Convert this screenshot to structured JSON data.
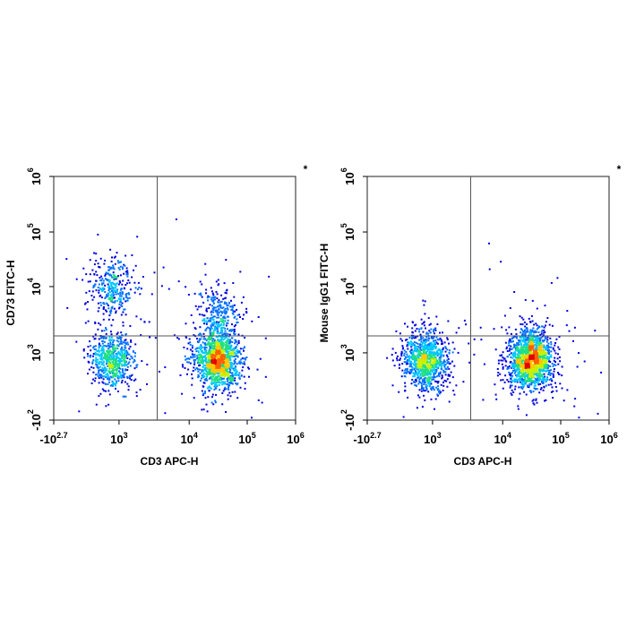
{
  "chart_data": [
    {
      "type": "scatter",
      "style": "density-colored dot plot",
      "xlabel": "CD3 APC-H",
      "ylabel": "CD73 FITC-H",
      "corner_marker": "*",
      "x_scale": "biexponential",
      "y_scale": "biexponential",
      "x_ticks": [
        {
          "value": -501,
          "base": "-10",
          "exp": "2.7"
        },
        {
          "value": 1000,
          "base": "10",
          "exp": "3"
        },
        {
          "value": 10000,
          "base": "10",
          "exp": "4"
        },
        {
          "value": 100000,
          "base": "10",
          "exp": "5"
        },
        {
          "value": 1000000,
          "base": "10",
          "exp": "6"
        }
      ],
      "y_ticks": [
        {
          "value": -100,
          "base": "-10",
          "exp": "2"
        },
        {
          "value": 1000,
          "base": "10",
          "exp": "3"
        },
        {
          "value": 10000,
          "base": "10",
          "exp": "4"
        },
        {
          "value": 100000,
          "base": "10",
          "exp": "5"
        },
        {
          "value": 1000000,
          "base": "10",
          "exp": "6"
        }
      ],
      "quadrant_gate": {
        "x": 3500,
        "y": 1800
      },
      "populations": [
        {
          "x_center": 250,
          "y_center": 10000,
          "weight": 0.13
        },
        {
          "x_center": 250,
          "y_center": 300,
          "weight": 0.25
        },
        {
          "x_center": 30000,
          "y_center": 4000,
          "weight": 0.1
        },
        {
          "x_center": 30000,
          "y_center": 350,
          "weight": 0.52
        }
      ]
    },
    {
      "type": "scatter",
      "style": "density-colored dot plot",
      "xlabel": "CD3 APC-H",
      "ylabel": "Mouse IgG1 FITC-H",
      "corner_marker": "*",
      "x_scale": "biexponential",
      "y_scale": "biexponential",
      "x_ticks": [
        {
          "value": -501,
          "base": "-10",
          "exp": "2.7"
        },
        {
          "value": 1000,
          "base": "10",
          "exp": "3"
        },
        {
          "value": 10000,
          "base": "10",
          "exp": "4"
        },
        {
          "value": 100000,
          "base": "10",
          "exp": "5"
        },
        {
          "value": 1000000,
          "base": "10",
          "exp": "6"
        }
      ],
      "y_ticks": [
        {
          "value": -100,
          "base": "-10",
          "exp": "2"
        },
        {
          "value": 1000,
          "base": "10",
          "exp": "3"
        },
        {
          "value": 10000,
          "base": "10",
          "exp": "4"
        },
        {
          "value": 100000,
          "base": "10",
          "exp": "5"
        },
        {
          "value": 1000000,
          "base": "10",
          "exp": "6"
        }
      ],
      "quadrant_gate": {
        "x": 3500,
        "y": 1800
      },
      "populations": [
        {
          "x_center": 250,
          "y_center": 300,
          "weight": 0.38
        },
        {
          "x_center": 30000,
          "y_center": 350,
          "weight": 0.62
        }
      ]
    }
  ],
  "density_colors": [
    "#0000e0",
    "#0070ff",
    "#00c8ff",
    "#20e080",
    "#c8f000",
    "#ffc800",
    "#ff6000",
    "#e00000"
  ]
}
